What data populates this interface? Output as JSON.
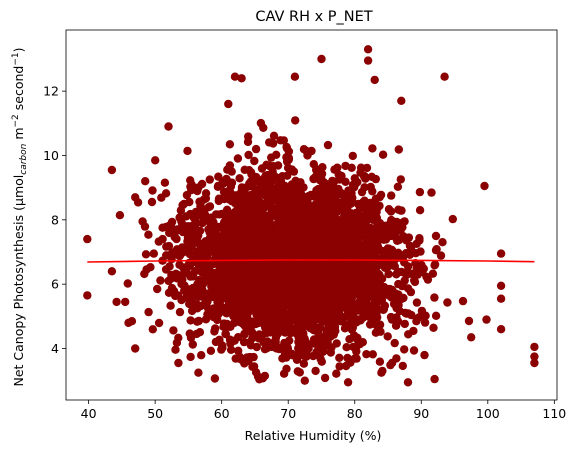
{
  "chart_data": {
    "type": "scatter",
    "title": "CAV RH x P_NET",
    "xlabel": "Relative Humidity (%)",
    "ylabel": {
      "prefix": "Net Canopy Photosynthesis (µmol",
      "subscript": "carbon",
      "middle": " m",
      "sup1": "−2",
      "middle2": " second",
      "sup2": "−1",
      "suffix": ")"
    },
    "xlim": [
      36.6,
      110.4
    ],
    "ylim": [
      2.4,
      13.9
    ],
    "xticks": [
      40,
      50,
      60,
      70,
      80,
      90,
      100,
      110
    ],
    "yticks": [
      4,
      6,
      8,
      10,
      12
    ],
    "grid": false,
    "marker_color": "#8b0000",
    "line_color": "#ff0000",
    "series": [
      {
        "kind": "points",
        "cloud": {
          "x_center": 71,
          "x_spread": 8.3,
          "y_center": 6.75,
          "y_spread": 1.35,
          "approx_count": 3500
        },
        "outliers": [
          [
            39.8,
            7.4
          ],
          [
            39.8,
            5.65
          ],
          [
            43.5,
            9.55
          ],
          [
            43.5,
            6.4
          ],
          [
            44.2,
            5.45
          ],
          [
            45.5,
            5.45
          ],
          [
            46.0,
            4.8
          ],
          [
            46.5,
            4.85
          ],
          [
            47.0,
            4.0
          ],
          [
            47.0,
            8.7
          ],
          [
            48.5,
            9.2
          ],
          [
            50.0,
            9.85
          ],
          [
            52.0,
            10.9
          ],
          [
            53.5,
            3.55
          ],
          [
            56.5,
            3.25
          ],
          [
            61.0,
            11.6
          ],
          [
            62.0,
            12.45
          ],
          [
            63.0,
            12.4
          ],
          [
            66.5,
            3.15
          ],
          [
            71.0,
            12.45
          ],
          [
            72.5,
            3.0
          ],
          [
            75.0,
            13.0
          ],
          [
            79.0,
            2.95
          ],
          [
            82.0,
            13.3
          ],
          [
            82.0,
            12.95
          ],
          [
            83.0,
            12.35
          ],
          [
            84.0,
            3.25
          ],
          [
            87.0,
            11.7
          ],
          [
            88.0,
            2.95
          ],
          [
            92.0,
            3.05
          ],
          [
            93.5,
            12.45
          ],
          [
            97.5,
            4.35
          ],
          [
            99.5,
            9.05
          ],
          [
            99.8,
            4.9
          ],
          [
            102.0,
            6.95
          ],
          [
            102.0,
            5.95
          ],
          [
            102.0,
            5.55
          ],
          [
            102.0,
            4.6
          ],
          [
            107.0,
            4.05
          ],
          [
            107.0,
            3.75
          ],
          [
            107.0,
            3.55
          ]
        ]
      },
      {
        "kind": "trend-line",
        "x": [
          39.8,
          50,
          60,
          70,
          80,
          90,
          100,
          107
        ],
        "y": [
          6.69,
          6.72,
          6.74,
          6.75,
          6.75,
          6.74,
          6.72,
          6.7
        ]
      }
    ]
  }
}
